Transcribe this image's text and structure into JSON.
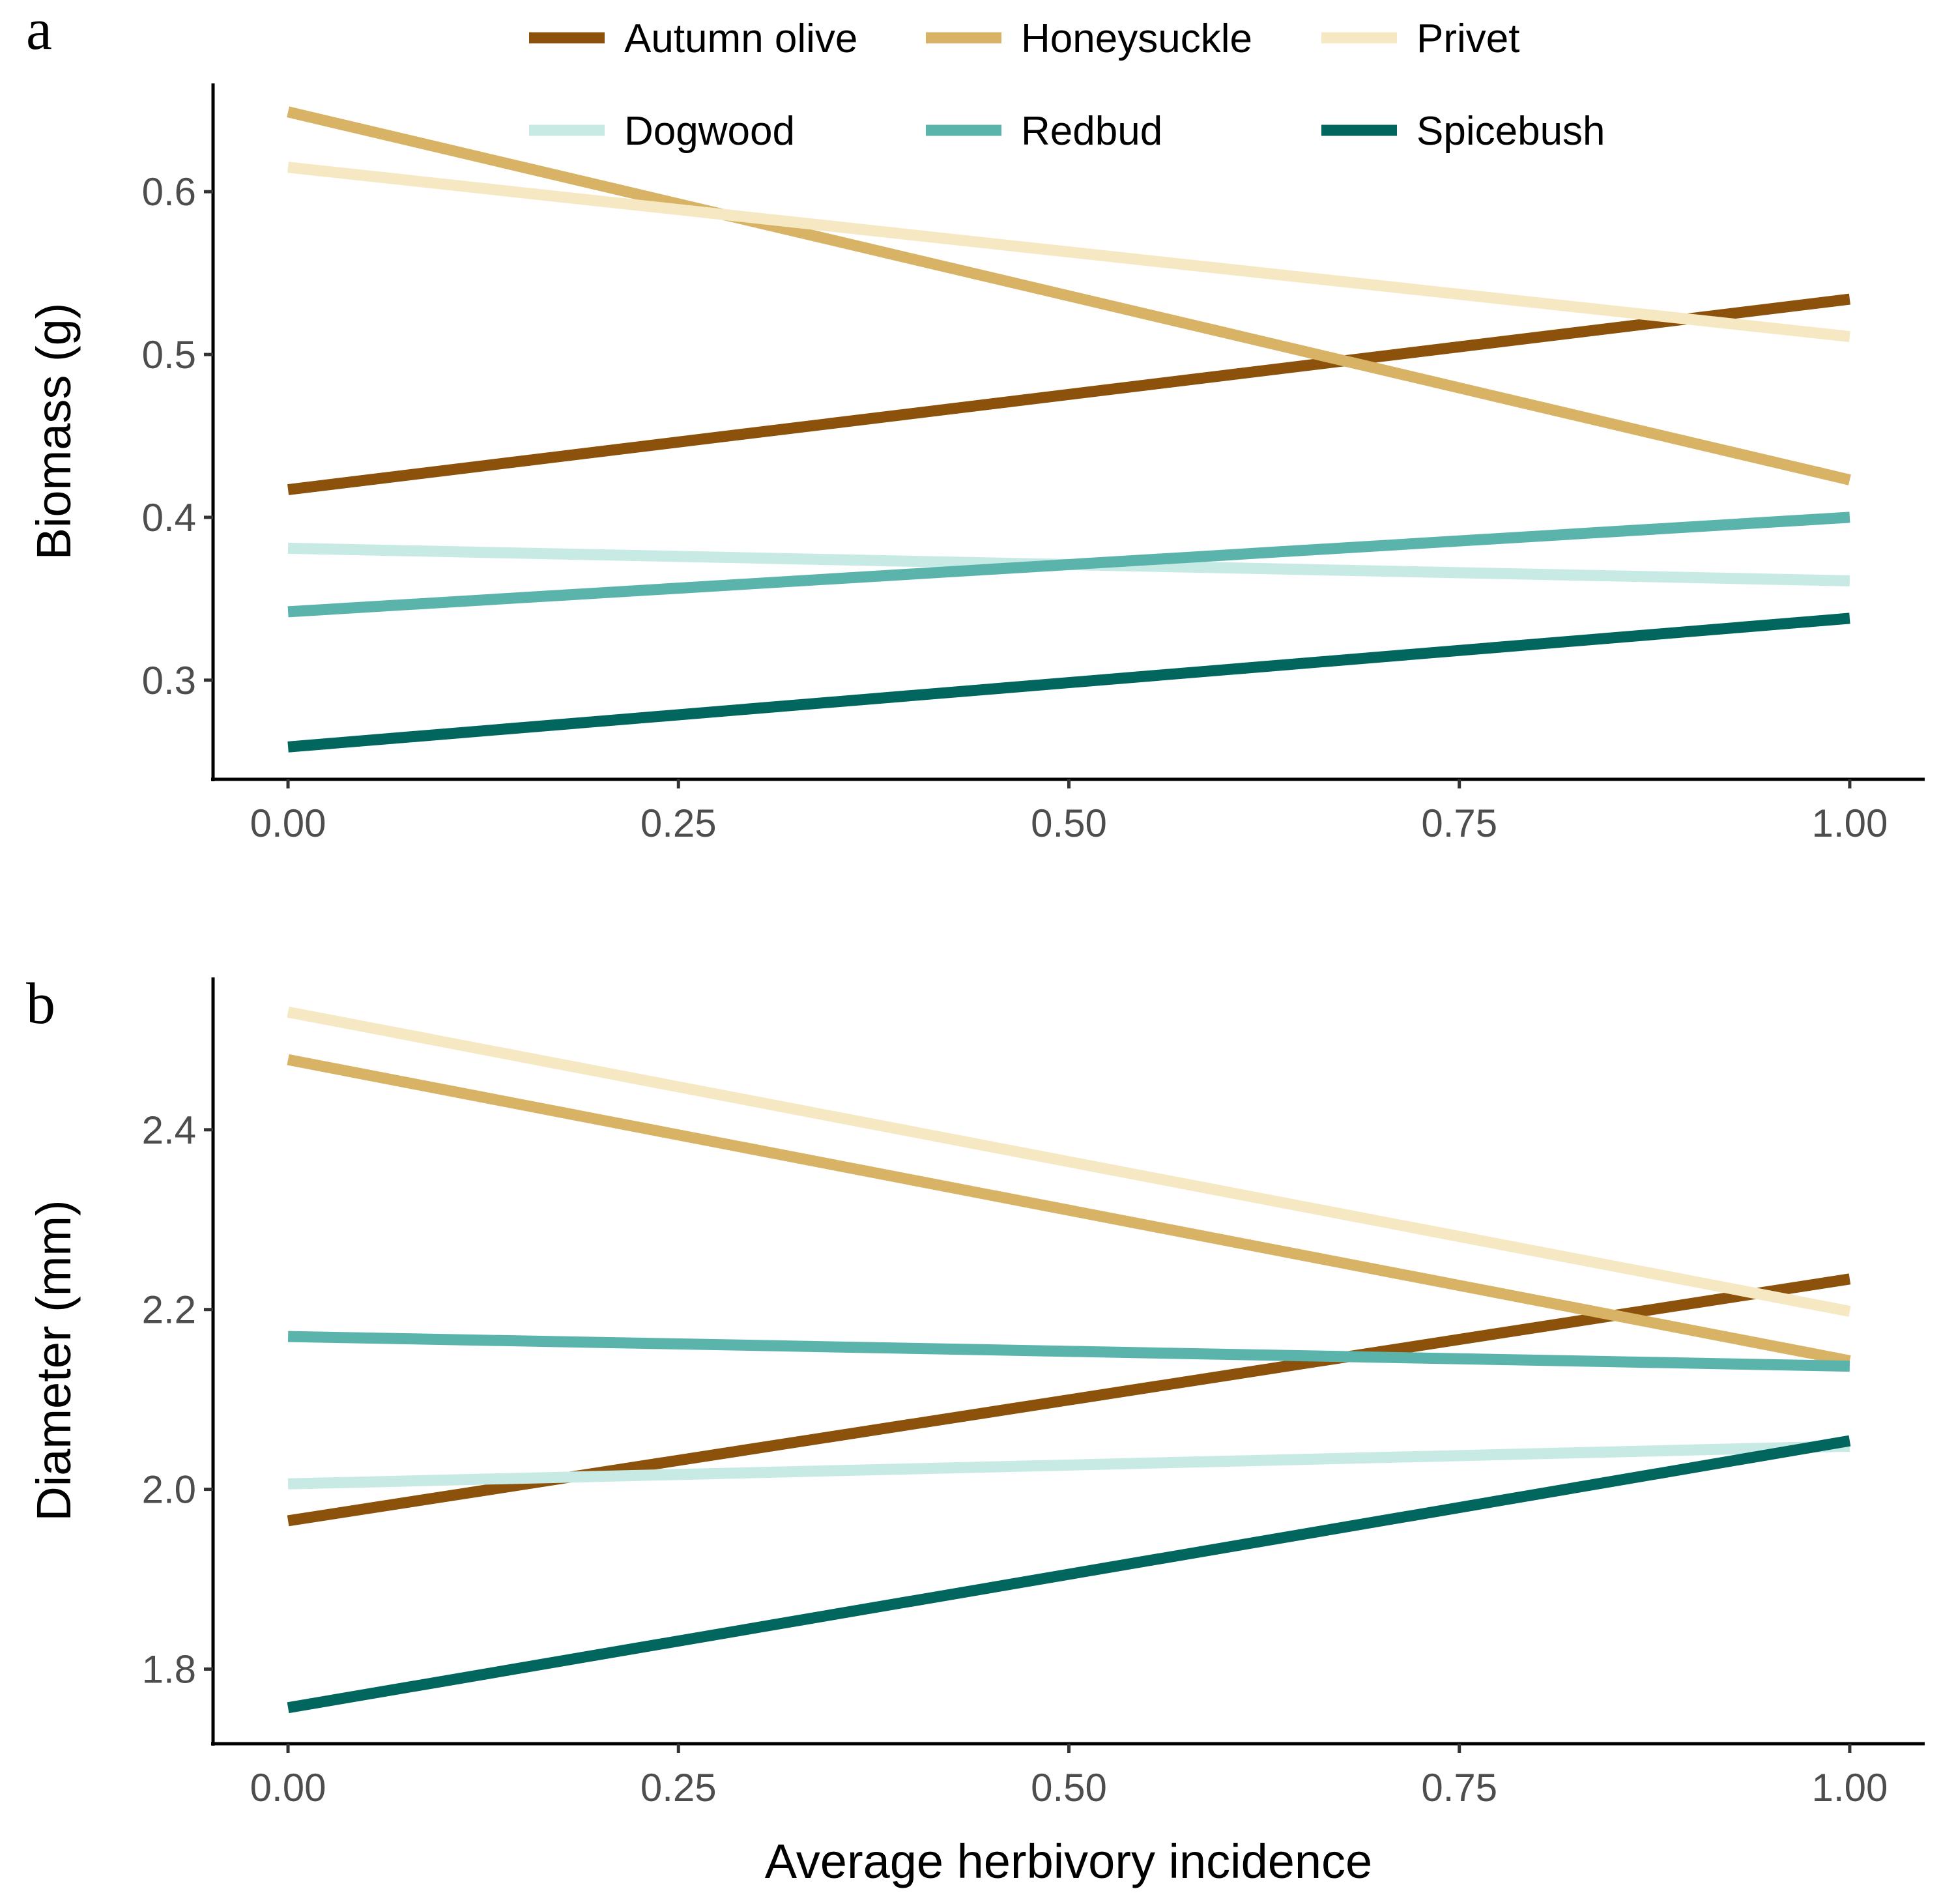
{
  "chart_data": [
    {
      "type": "line",
      "panel_label": "a",
      "title": "",
      "xlabel": "",
      "ylabel": "Biomass (g)",
      "xlim": [
        -0.048,
        1.048
      ],
      "ylim": [
        0.2391,
        0.6665
      ],
      "x_ticks": [
        0.0,
        0.25,
        0.5,
        0.75,
        1.0
      ],
      "x_tick_labels": [
        "0.00",
        "0.25",
        "0.50",
        "0.75",
        "1.00"
      ],
      "y_ticks": [
        0.3,
        0.4,
        0.5,
        0.6
      ],
      "y_tick_labels": [
        "0.3",
        "0.4",
        "0.5",
        "0.6"
      ],
      "grid": false,
      "series": [
        {
          "name": "Autumn olive",
          "color": "#8c510a",
          "x": [
            0,
            1
          ],
          "y": [
            0.417,
            0.534
          ]
        },
        {
          "name": "Honeysuckle",
          "color": "#d8b365",
          "x": [
            0,
            1
          ],
          "y": [
            0.649,
            0.423
          ]
        },
        {
          "name": "Privet",
          "color": "#f6e8c3",
          "x": [
            0,
            1
          ],
          "y": [
            0.615,
            0.511
          ]
        },
        {
          "name": "Dogwood",
          "color": "#c7eae5",
          "x": [
            0,
            1
          ],
          "y": [
            0.381,
            0.361
          ]
        },
        {
          "name": "Redbud",
          "color": "#5ab4ac",
          "x": [
            0,
            1
          ],
          "y": [
            0.342,
            0.4
          ]
        },
        {
          "name": "Spicebush",
          "color": "#01665e",
          "x": [
            0,
            1
          ],
          "y": [
            0.259,
            0.338
          ]
        }
      ]
    },
    {
      "type": "line",
      "panel_label": "b",
      "title": "",
      "xlabel": "Average herbivory incidence",
      "ylabel": "Diameter (mm)",
      "xlim": [
        -0.048,
        1.048
      ],
      "ylim": [
        1.717,
        2.5695
      ],
      "x_ticks": [
        0.0,
        0.25,
        0.5,
        0.75,
        1.0
      ],
      "x_tick_labels": [
        "0.00",
        "0.25",
        "0.50",
        "0.75",
        "1.00"
      ],
      "y_ticks": [
        1.8,
        2.0,
        2.2,
        2.4
      ],
      "y_tick_labels": [
        "1.8",
        "2.0",
        "2.2",
        "2.4"
      ],
      "grid": false,
      "series": [
        {
          "name": "Autumn olive",
          "color": "#8c510a",
          "x": [
            0,
            1
          ],
          "y": [
            1.965,
            2.234
          ]
        },
        {
          "name": "Honeysuckle",
          "color": "#d8b365",
          "x": [
            0,
            1
          ],
          "y": [
            2.478,
            2.143
          ]
        },
        {
          "name": "Privet",
          "color": "#f6e8c3",
          "x": [
            0,
            1
          ],
          "y": [
            2.531,
            2.198
          ]
        },
        {
          "name": "Dogwood",
          "color": "#c7eae5",
          "x": [
            0,
            1
          ],
          "y": [
            2.006,
            2.048
          ]
        },
        {
          "name": "Redbud",
          "color": "#5ab4ac",
          "x": [
            0,
            1
          ],
          "y": [
            2.17,
            2.137
          ]
        },
        {
          "name": "Spicebush",
          "color": "#01665e",
          "x": [
            0,
            1
          ],
          "y": [
            1.757,
            2.054
          ]
        }
      ]
    }
  ],
  "legend": {
    "position": "top",
    "items": [
      {
        "label": "Autumn olive",
        "color": "#8c510a"
      },
      {
        "label": "Honeysuckle",
        "color": "#d8b365"
      },
      {
        "label": "Privet",
        "color": "#f6e8c3"
      },
      {
        "label": "Dogwood",
        "color": "#c7eae5"
      },
      {
        "label": "Redbud",
        "color": "#5ab4ac"
      },
      {
        "label": "Spicebush",
        "color": "#01665e"
      }
    ]
  }
}
